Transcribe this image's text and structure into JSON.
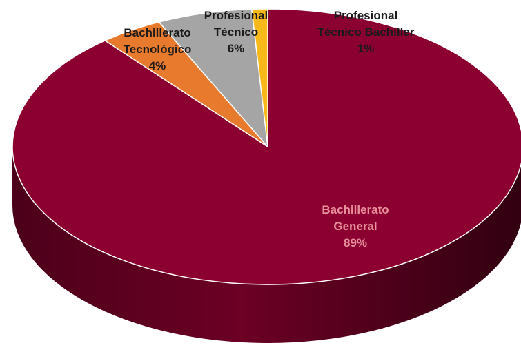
{
  "chart_data": {
    "type": "pie",
    "style": "3d",
    "start_angle_clockwise_from_top": 0,
    "slices": [
      {
        "name": "Bachillerato General",
        "label_lines": [
          "Bachillerato",
          "General"
        ],
        "value_label": "89%",
        "value": 89,
        "color": "#8b0030"
      },
      {
        "name": "Bachillerato Tecnológico",
        "label_lines": [
          "Bachillerato",
          "Tecnológico"
        ],
        "value_label": "4%",
        "value": 4,
        "color": "#e87a2e"
      },
      {
        "name": "Profesional Técnico",
        "label_lines": [
          "Profesional",
          "Técnico"
        ],
        "value_label": "6%",
        "value": 6,
        "color": "#a5a5a5"
      },
      {
        "name": "Profesional Técnico Bachiller",
        "label_lines": [
          "Profesional",
          "Técnico Bachiller"
        ],
        "value_label": "1%",
        "value": 1,
        "color": "#f7b81a"
      }
    ]
  }
}
